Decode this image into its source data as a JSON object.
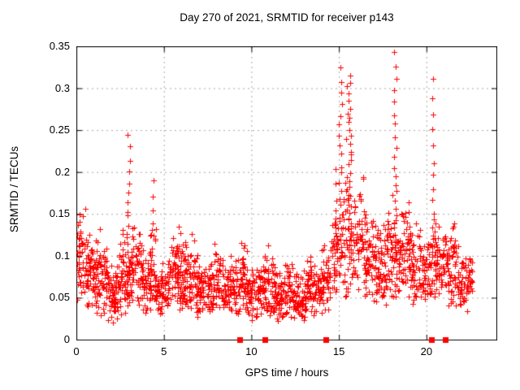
{
  "chart_data": {
    "type": "scatter",
    "title": "Day 270 of 2021, SRMTID for receiver p143",
    "xlabel": "GPS time / hours",
    "ylabel": "SRMTID / TECUs",
    "xlim": [
      0,
      24
    ],
    "ylim": [
      0,
      0.35
    ],
    "xticks": [
      [
        0,
        "0"
      ],
      [
        5,
        "5"
      ],
      [
        10,
        "10"
      ],
      [
        15,
        "15"
      ],
      [
        20,
        "20"
      ]
    ],
    "yticks": [
      [
        0,
        "0"
      ],
      [
        0.05,
        "0.05"
      ],
      [
        0.1,
        "0.1"
      ],
      [
        0.15,
        "0.15"
      ],
      [
        0.2,
        "0.2"
      ],
      [
        0.25,
        "0.25"
      ],
      [
        0.3,
        "0.3"
      ],
      [
        0.35,
        "0.35"
      ]
    ],
    "grid": true,
    "legend": "none",
    "marker": "plus",
    "colors": {
      "marker": "#ff0000",
      "grid": "#a8a8a8",
      "axis": "#000000",
      "background": "#ffffff"
    },
    "axis_markers": {
      "style": "filled-square",
      "color": "#ff0000",
      "y": 0,
      "x": [
        9.3,
        10.75,
        14.25,
        20.25,
        21.05
      ]
    },
    "scatter_model": {
      "seed": 20211270,
      "bands_format": [
        "t_start",
        "t_end",
        "count",
        "mean",
        "sd",
        "min",
        "max"
      ],
      "bands": [
        [
          0.0,
          0.6,
          55,
          0.095,
          0.032,
          0.04,
          0.175
        ],
        [
          0.6,
          1.1,
          50,
          0.08,
          0.025,
          0.03,
          0.135
        ],
        [
          1.1,
          1.75,
          65,
          0.072,
          0.025,
          0.025,
          0.135
        ],
        [
          1.75,
          2.4,
          60,
          0.055,
          0.018,
          0.018,
          0.1
        ],
        [
          2.4,
          2.8,
          40,
          0.075,
          0.025,
          0.03,
          0.135
        ],
        [
          2.8,
          3.15,
          30,
          0.07,
          0.02,
          0.03,
          0.12
        ],
        [
          3.15,
          3.7,
          50,
          0.085,
          0.03,
          0.04,
          0.148
        ],
        [
          3.7,
          4.2,
          45,
          0.065,
          0.02,
          0.03,
          0.11
        ],
        [
          4.2,
          4.55,
          35,
          0.085,
          0.03,
          0.04,
          0.135
        ],
        [
          4.55,
          5.3,
          65,
          0.06,
          0.018,
          0.03,
          0.1
        ],
        [
          5.3,
          6.05,
          75,
          0.08,
          0.028,
          0.035,
          0.152
        ],
        [
          6.05,
          6.75,
          65,
          0.075,
          0.025,
          0.035,
          0.135
        ],
        [
          6.75,
          7.5,
          65,
          0.062,
          0.02,
          0.028,
          0.105
        ],
        [
          7.5,
          8.25,
          70,
          0.07,
          0.024,
          0.03,
          0.125
        ],
        [
          8.25,
          9.0,
          65,
          0.06,
          0.02,
          0.025,
          0.11
        ],
        [
          9.0,
          9.75,
          65,
          0.068,
          0.024,
          0.028,
          0.125
        ],
        [
          9.75,
          10.55,
          70,
          0.055,
          0.018,
          0.02,
          0.1
        ],
        [
          10.55,
          11.3,
          70,
          0.065,
          0.022,
          0.028,
          0.12
        ],
        [
          11.3,
          12.3,
          90,
          0.055,
          0.018,
          0.022,
          0.095
        ],
        [
          12.3,
          13.1,
          75,
          0.052,
          0.018,
          0.02,
          0.1
        ],
        [
          13.1,
          14.0,
          80,
          0.06,
          0.02,
          0.025,
          0.105
        ],
        [
          14.0,
          14.5,
          45,
          0.07,
          0.022,
          0.03,
          0.115
        ],
        [
          14.5,
          14.95,
          40,
          0.1,
          0.035,
          0.045,
          0.185
        ],
        [
          14.95,
          15.9,
          55,
          0.11,
          0.04,
          0.05,
          0.22
        ],
        [
          15.9,
          16.5,
          55,
          0.115,
          0.04,
          0.05,
          0.21
        ],
        [
          16.5,
          17.1,
          55,
          0.09,
          0.03,
          0.045,
          0.17
        ],
        [
          17.1,
          17.7,
          55,
          0.085,
          0.03,
          0.04,
          0.15
        ],
        [
          17.7,
          18.05,
          35,
          0.1,
          0.035,
          0.05,
          0.185
        ],
        [
          18.05,
          18.45,
          35,
          0.095,
          0.03,
          0.05,
          0.16
        ],
        [
          18.45,
          19.1,
          55,
          0.1,
          0.035,
          0.05,
          0.23
        ],
        [
          19.1,
          19.85,
          65,
          0.085,
          0.028,
          0.04,
          0.145
        ],
        [
          19.85,
          20.2,
          30,
          0.075,
          0.025,
          0.04,
          0.13
        ],
        [
          20.2,
          20.5,
          25,
          0.08,
          0.025,
          0.045,
          0.13
        ],
        [
          20.5,
          21.2,
          60,
          0.09,
          0.028,
          0.05,
          0.145
        ],
        [
          21.2,
          21.8,
          55,
          0.085,
          0.03,
          0.04,
          0.14
        ],
        [
          21.8,
          22.3,
          45,
          0.062,
          0.02,
          0.032,
          0.1
        ],
        [
          22.3,
          22.6,
          25,
          0.08,
          0.02,
          0.05,
          0.105
        ]
      ],
      "spikes_format": [
        "t_center",
        "t_jitter",
        "count",
        "y_low",
        "y_high",
        "power"
      ],
      "spikes": [
        [
          2.95,
          0.1,
          22,
          0.08,
          0.243,
          1.9
        ],
        [
          4.35,
          0.05,
          5,
          0.125,
          0.19,
          1.2
        ],
        [
          14.82,
          0.06,
          7,
          0.115,
          0.205,
          1.3
        ],
        [
          15.05,
          0.09,
          26,
          0.1,
          0.322,
          1.6
        ],
        [
          15.55,
          0.15,
          42,
          0.11,
          0.315,
          1.5
        ],
        [
          18.2,
          0.1,
          26,
          0.1,
          0.343,
          1.6
        ],
        [
          20.35,
          0.06,
          15,
          0.115,
          0.312,
          1.6
        ]
      ]
    }
  }
}
